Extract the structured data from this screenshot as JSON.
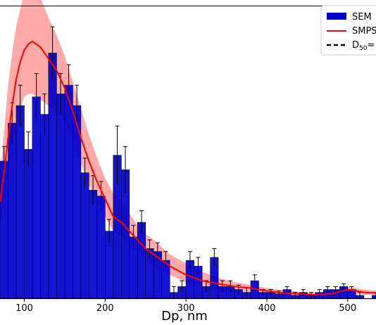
{
  "chart_data": {
    "type": "bar",
    "xlabel": "Dp, nm",
    "ylabel": "",
    "xlim": [
      70,
      535
    ],
    "ylim": [
      0,
      1.0
    ],
    "x_ticks": [
      100,
      200,
      300,
      400,
      500
    ],
    "bin_width": 10,
    "bar_color": "#0000cc",
    "line_color": "#ff0000",
    "band_color": "#ff7070",
    "grid": false,
    "legend_position": "top-right",
    "legend": [
      {
        "label": "SEM",
        "kind": "bar"
      },
      {
        "label": "SMPS",
        "kind": "line"
      },
      {
        "label": "D",
        "sub": "50",
        "suffix": "=",
        "kind": "dashed"
      }
    ],
    "series": [
      {
        "name": "SEM",
        "kind": "bar",
        "x": [
          70,
          80,
          90,
          100,
          110,
          120,
          130,
          140,
          150,
          160,
          170,
          180,
          190,
          200,
          210,
          220,
          230,
          240,
          250,
          260,
          270,
          280,
          290,
          300,
          310,
          320,
          330,
          340,
          350,
          360,
          370,
          380,
          390,
          400,
          410,
          420,
          430,
          440,
          450,
          460,
          470,
          480,
          490,
          500,
          510,
          520,
          530
        ],
        "values": [
          0.47,
          0.6,
          0.66,
          0.51,
          0.69,
          0.63,
          0.84,
          0.7,
          0.73,
          0.66,
          0.43,
          0.37,
          0.35,
          0.23,
          0.49,
          0.44,
          0.21,
          0.26,
          0.17,
          0.16,
          0.13,
          0.02,
          0.04,
          0.13,
          0.11,
          0.04,
          0.14,
          0.04,
          0.04,
          0.03,
          0.02,
          0.06,
          0.02,
          0.02,
          0.015,
          0.03,
          0.01,
          0.02,
          0.01,
          0.02,
          0.03,
          0.03,
          0.04,
          0.03,
          0.01,
          0.0,
          0.01
        ],
        "errors": [
          0.05,
          0.07,
          0.07,
          0.06,
          0.08,
          0.07,
          0.09,
          0.07,
          0.07,
          0.07,
          0.05,
          0.05,
          0.05,
          0.04,
          0.1,
          0.08,
          0.04,
          0.04,
          0.03,
          0.03,
          0.03,
          0.02,
          0.02,
          0.03,
          0.03,
          0.02,
          0.03,
          0.02,
          0.02,
          0.015,
          0.015,
          0.02,
          0.01,
          0.01,
          0.01,
          0.01,
          0.01,
          0.01,
          0.01,
          0.01,
          0.01,
          0.01,
          0.01,
          0.01,
          0.01,
          0.0,
          0.01
        ]
      },
      {
        "name": "SMPS",
        "kind": "line",
        "x": [
          70,
          75,
          80,
          85,
          90,
          95,
          100,
          105,
          110,
          115,
          120,
          130,
          140,
          150,
          160,
          170,
          180,
          190,
          200,
          210,
          220,
          230,
          240,
          250,
          260,
          280,
          300,
          320,
          340,
          360,
          380,
          400,
          420,
          440,
          460,
          480,
          500,
          520,
          535
        ],
        "values": [
          0.33,
          0.43,
          0.55,
          0.66,
          0.75,
          0.81,
          0.85,
          0.87,
          0.88,
          0.87,
          0.86,
          0.82,
          0.78,
          0.72,
          0.64,
          0.55,
          0.47,
          0.4,
          0.34,
          0.28,
          0.26,
          0.23,
          0.2,
          0.17,
          0.15,
          0.11,
          0.08,
          0.06,
          0.05,
          0.04,
          0.035,
          0.025,
          0.018,
          0.015,
          0.012,
          0.015,
          0.03,
          0.02,
          0.018
        ],
        "upper": [
          0.41,
          0.57,
          0.73,
          0.84,
          0.93,
          0.99,
          1.04,
          1.07,
          1.08,
          1.06,
          1.03,
          0.96,
          0.9,
          0.83,
          0.74,
          0.65,
          0.56,
          0.48,
          0.41,
          0.36,
          0.33,
          0.29,
          0.25,
          0.22,
          0.2,
          0.15,
          0.12,
          0.09,
          0.07,
          0.055,
          0.045,
          0.035,
          0.027,
          0.022,
          0.018,
          0.022,
          0.04,
          0.03,
          0.026
        ],
        "lower": [
          0.25,
          0.33,
          0.42,
          0.51,
          0.59,
          0.65,
          0.69,
          0.7,
          0.7,
          0.69,
          0.68,
          0.66,
          0.64,
          0.6,
          0.54,
          0.46,
          0.39,
          0.33,
          0.28,
          0.23,
          0.21,
          0.18,
          0.16,
          0.13,
          0.11,
          0.08,
          0.055,
          0.04,
          0.03,
          0.025,
          0.02,
          0.015,
          0.01,
          0.008,
          0.006,
          0.009,
          0.02,
          0.012,
          0.011
        ]
      }
    ]
  }
}
